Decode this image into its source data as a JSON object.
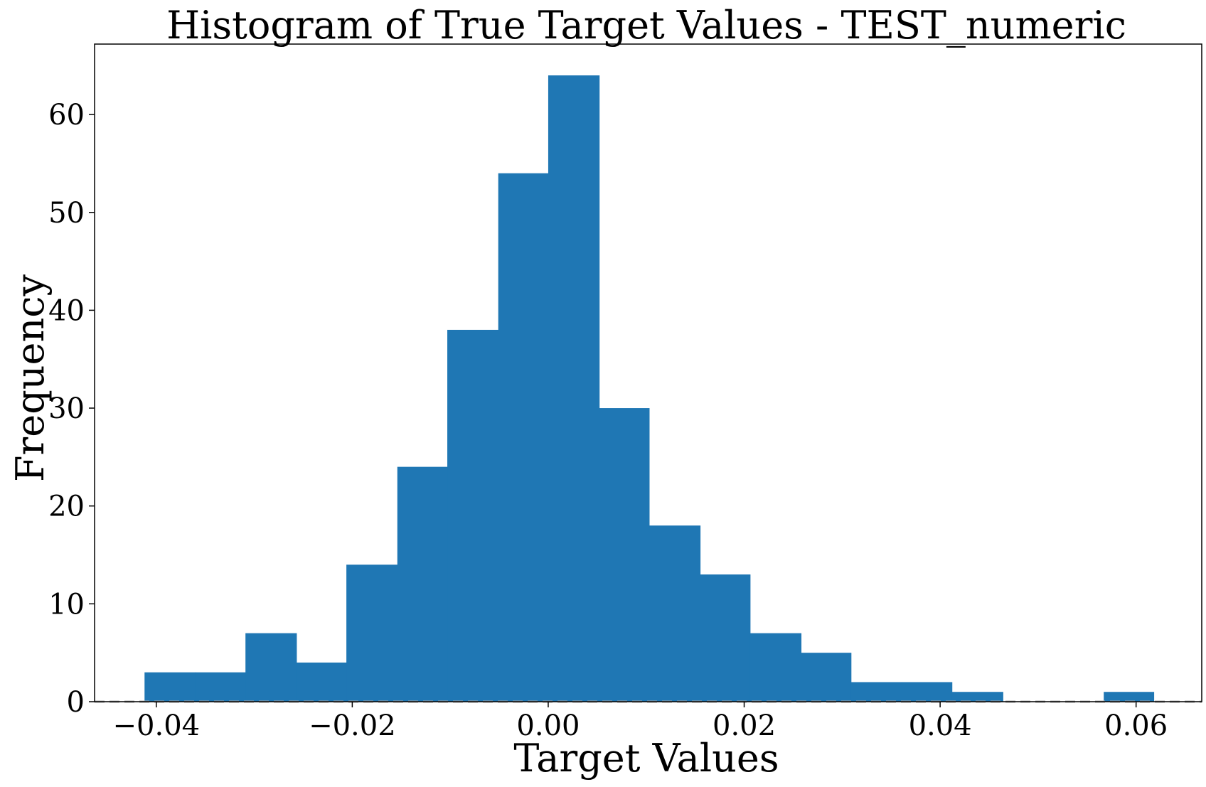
{
  "chart_data": {
    "type": "bar",
    "title": "Histogram of True Target Values - TEST_numeric",
    "xlabel": "Target Values",
    "ylabel": "Frequency",
    "xlim": [
      -0.0463,
      0.0667
    ],
    "ylim": [
      0,
      67.2
    ],
    "x_ticks": [
      -0.04,
      -0.02,
      0.0,
      0.02,
      0.04,
      0.06
    ],
    "x_tick_labels": [
      "−0.04",
      "−0.02",
      "0.00",
      "0.02",
      "0.04",
      "0.06"
    ],
    "y_ticks": [
      0,
      10,
      20,
      30,
      40,
      50,
      60
    ],
    "y_tick_labels": [
      "0",
      "10",
      "20",
      "30",
      "40",
      "50",
      "60"
    ],
    "bin_edges": [
      -0.0412,
      -0.036,
      -0.0309,
      -0.0257,
      -0.0206,
      -0.0154,
      -0.0103,
      -0.0051,
      0.0,
      0.0052,
      0.0103,
      0.0155,
      0.0206,
      0.0258,
      0.0309,
      0.0361,
      0.0412,
      0.0464,
      0.0515,
      0.0567,
      0.0618
    ],
    "values": [
      3,
      3,
      7,
      4,
      14,
      24,
      38,
      54,
      64,
      30,
      18,
      13,
      7,
      5,
      2,
      2,
      1,
      0,
      0,
      1
    ],
    "grid": false,
    "reference_line": {
      "y": 0,
      "style": "dashed",
      "color": "#a6a6a6"
    },
    "colors": {
      "bar": "#1f77b4",
      "axes": "#000000"
    }
  }
}
